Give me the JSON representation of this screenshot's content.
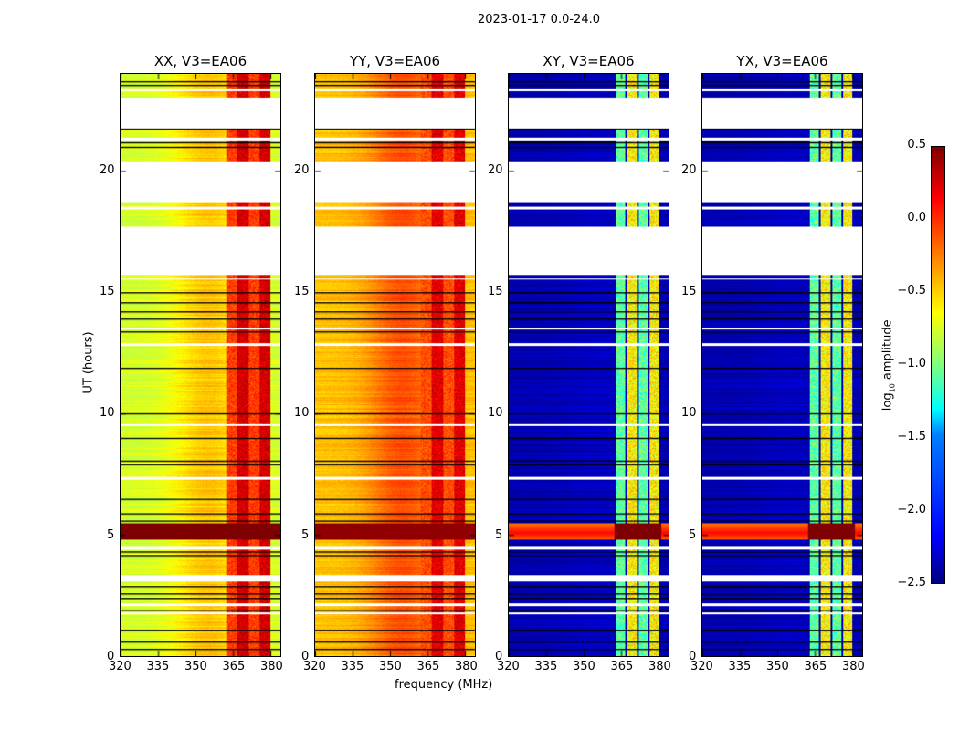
{
  "chart_data": {
    "type": "heatmap",
    "title": "2023-01-17 0.0-24.0",
    "xlabel": "frequency (MHz)",
    "ylabel": "UT (hours)",
    "xlim": [
      320,
      384
    ],
    "ylim": [
      0,
      24
    ],
    "xticks": [
      320,
      335,
      350,
      365,
      380
    ],
    "yticks": [
      0,
      5,
      10,
      15,
      20
    ],
    "colorbar": {
      "label": "log10 amplitude",
      "label_base": "log",
      "label_sub": "10",
      "label_rest": " amplitude",
      "range": [
        -2.5,
        0.5
      ],
      "ticks": [
        "0.5",
        "0.0",
        "−0.5",
        "−1.0",
        "−1.5",
        "−2.0",
        "−2.5"
      ],
      "colormap": "jet"
    },
    "flagged_gaps_hours": [
      [
        23.05,
        21.75
      ],
      [
        20.4,
        18.75
      ],
      [
        17.7,
        15.75
      ],
      [
        3.35,
        3.1
      ],
      [
        4.55,
        4.4
      ],
      [
        7.4,
        7.3
      ],
      [
        9.6,
        9.5
      ],
      [
        12.9,
        12.8
      ],
      [
        13.55,
        13.5
      ],
      [
        2.2,
        2.1
      ],
      [
        1.8,
        1.75
      ],
      [
        23.4,
        23.3
      ],
      [
        21.4,
        21.3
      ],
      [
        18.55,
        18.45
      ],
      [
        15.6,
        15.55
      ]
    ],
    "black_lines_hours": [
      23.7,
      23.55,
      21.75,
      21.2,
      21.0,
      15.0,
      14.6,
      14.2,
      13.9,
      13.4,
      11.9,
      10.0,
      9.0,
      8.05,
      7.9,
      6.5,
      5.9,
      5.6,
      4.3,
      4.15,
      2.9,
      2.6,
      2.4,
      1.9,
      1.1,
      0.6,
      0.3
    ],
    "rfi_band_MHz": [
      362,
      380
    ],
    "strong_band_hours": [
      4.8,
      5.5
    ],
    "panels": [
      {
        "title": "XX, V3=EA06",
        "pol": "XX",
        "base": -0.75,
        "center": -0.45,
        "rfi": 0.3,
        "band": 0.5
      },
      {
        "title": "YY, V3=EA06",
        "pol": "YY",
        "base": -0.45,
        "center": -0.1,
        "rfi": 0.25,
        "band": 0.45
      },
      {
        "title": "XY, V3=EA06",
        "pol": "XY",
        "base": -2.35,
        "center": -2.3,
        "rfi": -0.8,
        "band": 0.0
      },
      {
        "title": "YX, V3=EA06",
        "pol": "YX",
        "base": -2.35,
        "center": -2.3,
        "rfi": -0.8,
        "band": 0.0
      }
    ]
  }
}
